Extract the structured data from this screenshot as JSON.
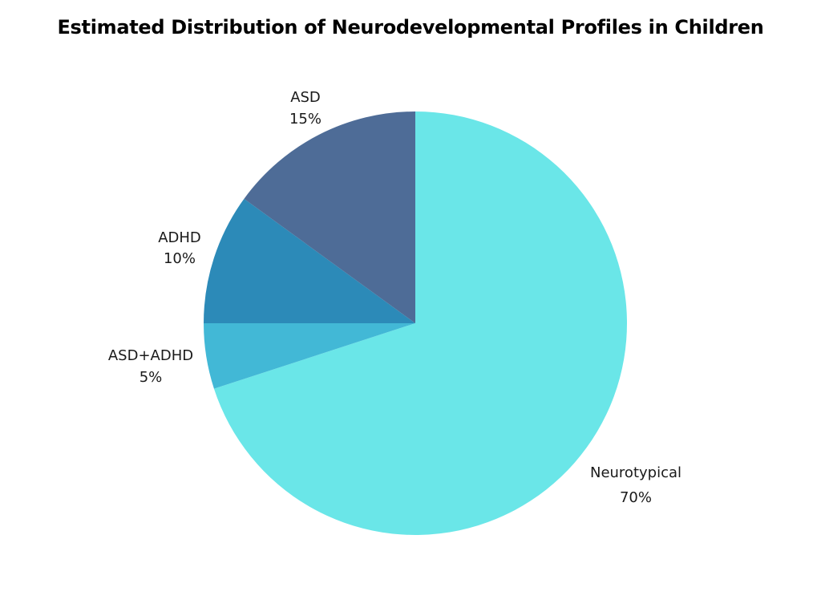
{
  "chart_data": {
    "type": "pie",
    "title": "Estimated Distribution of Neurodevelopmental Profiles in Children",
    "start_angle_deg": 0,
    "direction": "clockwise",
    "slices": [
      {
        "label": "Neurotypical",
        "value": 70,
        "value_label": "70%",
        "color": "#6ae6e8"
      },
      {
        "label": "ASD+ADHD",
        "value": 5,
        "value_label": "5%",
        "color": "#42b8d6"
      },
      {
        "label": "ADHD",
        "value": 10,
        "value_label": "10%",
        "color": "#2c8ab8"
      },
      {
        "label": "ASD",
        "value": 15,
        "value_label": "15%",
        "color": "#4e6c97"
      }
    ]
  }
}
